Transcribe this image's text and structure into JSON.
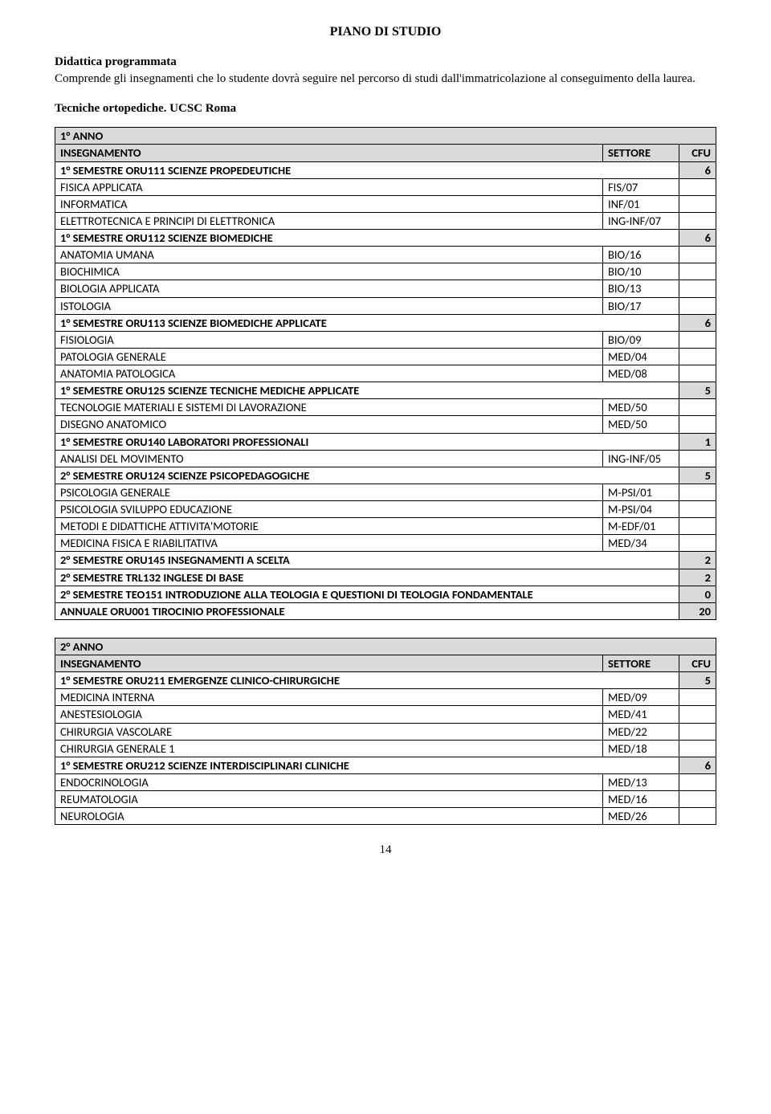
{
  "title": "PIANO DI STUDIO",
  "intro_heading": "Didattica programmata",
  "intro_text": "Comprende gli insegnamenti che lo studente dovrà seguire nel percorso di studi dall'immatricolazione al conseguimento della laurea.",
  "subheading": "Tecniche ortopediche. UCSC Roma",
  "column_headers": {
    "name": "INSEGNAMENTO",
    "settore": "SETTORE",
    "cfu": "CFU"
  },
  "year1": {
    "label": "1° ANNO",
    "rows": [
      {
        "type": "module",
        "name": "1° SEMESTRE ORU111 SCIENZE PROPEDEUTICHE",
        "cfu": "6"
      },
      {
        "type": "course",
        "name": "FISICA APPLICATA",
        "settore": "FIS/07"
      },
      {
        "type": "course",
        "name": "INFORMATICA",
        "settore": "INF/01"
      },
      {
        "type": "course",
        "name": "ELETTROTECNICA E PRINCIPI DI ELETTRONICA",
        "settore": "ING-INF/07"
      },
      {
        "type": "module",
        "name": "1° SEMESTRE ORU112 SCIENZE BIOMEDICHE",
        "cfu": "6"
      },
      {
        "type": "course",
        "name": "ANATOMIA UMANA",
        "settore": "BIO/16"
      },
      {
        "type": "course",
        "name": "BIOCHIMICA",
        "settore": "BIO/10"
      },
      {
        "type": "course",
        "name": "BIOLOGIA APPLICATA",
        "settore": "BIO/13"
      },
      {
        "type": "course",
        "name": "ISTOLOGIA",
        "settore": "BIO/17"
      },
      {
        "type": "module",
        "name": "1° SEMESTRE ORU113 SCIENZE BIOMEDICHE APPLICATE",
        "cfu": "6"
      },
      {
        "type": "course",
        "name": "FISIOLOGIA",
        "settore": "BIO/09"
      },
      {
        "type": "course",
        "name": "PATOLOGIA GENERALE",
        "settore": "MED/04"
      },
      {
        "type": "course",
        "name": "ANATOMIA PATOLOGICA",
        "settore": "MED/08"
      },
      {
        "type": "module",
        "name": "1° SEMESTRE ORU125 SCIENZE TECNICHE MEDICHE APPLICATE",
        "cfu": "5"
      },
      {
        "type": "course",
        "name": "TECNOLOGIE MATERIALI E SISTEMI DI LAVORAZIONE",
        "settore": "MED/50"
      },
      {
        "type": "course",
        "name": "DISEGNO ANATOMICO",
        "settore": "MED/50"
      },
      {
        "type": "module",
        "name": "1° SEMESTRE ORU140 LABORATORI PROFESSIONALI",
        "cfu": "1"
      },
      {
        "type": "course",
        "name": "ANALISI DEL MOVIMENTO",
        "settore": "ING-INF/05"
      },
      {
        "type": "module",
        "name": "2° SEMESTRE ORU124 SCIENZE PSICOPEDAGOGICHE",
        "cfu": "5"
      },
      {
        "type": "course",
        "name": "PSICOLOGIA GENERALE",
        "settore": "M-PSI/01"
      },
      {
        "type": "course",
        "name": "PSICOLOGIA SVILUPPO EDUCAZIONE",
        "settore": "M-PSI/04"
      },
      {
        "type": "course",
        "name": "METODI E DIDATTICHE ATTIVITA'MOTORIE",
        "settore": "M-EDF/01"
      },
      {
        "type": "course",
        "name": "MEDICINA FISICA E RIABILITATIVA",
        "settore": "MED/34"
      },
      {
        "type": "module",
        "name": "2° SEMESTRE ORU145 INSEGNAMENTI A SCELTA",
        "cfu": "2"
      },
      {
        "type": "module",
        "name": "2° SEMESTRE TRL132 INGLESE DI BASE",
        "cfu": "2"
      },
      {
        "type": "module",
        "name": "2° SEMESTRE TEO151 INTRODUZIONE ALLA TEOLOGIA E QUESTIONI DI TEOLOGIA FONDAMENTALE",
        "cfu": "0"
      },
      {
        "type": "module",
        "name": "ANNUALE ORU001 TIROCINIO PROFESSIONALE",
        "cfu": "20"
      }
    ]
  },
  "year2": {
    "label": "2° ANNO",
    "rows": [
      {
        "type": "module",
        "name": "1° SEMESTRE ORU211 EMERGENZE CLINICO-CHIRURGICHE",
        "cfu": "5"
      },
      {
        "type": "course",
        "name": "MEDICINA INTERNA",
        "settore": "MED/09"
      },
      {
        "type": "course",
        "name": "ANESTESIOLOGIA",
        "settore": "MED/41"
      },
      {
        "type": "course",
        "name": "CHIRURGIA VASCOLARE",
        "settore": "MED/22"
      },
      {
        "type": "course",
        "name": "CHIRURGIA GENERALE 1",
        "settore": "MED/18"
      },
      {
        "type": "module",
        "name": "1° SEMESTRE ORU212 SCIENZE INTERDISCIPLINARI CLINICHE",
        "cfu": "6"
      },
      {
        "type": "course",
        "name": "ENDOCRINOLOGIA",
        "settore": "MED/13"
      },
      {
        "type": "course",
        "name": "REUMATOLOGIA",
        "settore": "MED/16"
      },
      {
        "type": "course",
        "name": "NEUROLOGIA",
        "settore": "MED/26"
      }
    ]
  },
  "page_number": "14",
  "colors": {
    "header_bg": "#d9d9d9",
    "border": "#000000",
    "text": "#000000",
    "background": "#ffffff"
  },
  "fonts": {
    "body": "Times New Roman",
    "table": "Calibri",
    "title_size_pt": 12,
    "body_size_pt": 11,
    "table_size_pt": 11
  }
}
